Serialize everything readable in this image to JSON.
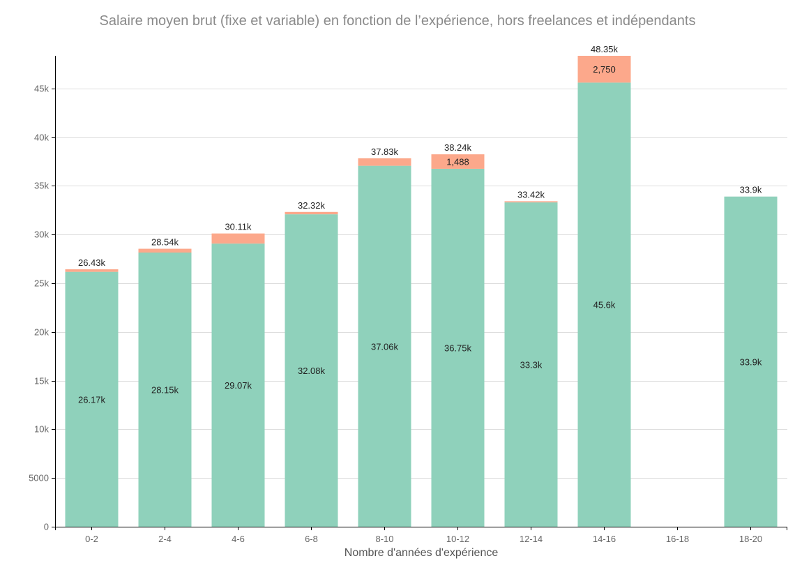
{
  "chart_data": {
    "type": "bar",
    "stacked": true,
    "title": "Salaire moyen brut (fixe et variable) en fonction de l’expérience, hors freelances et indépendants",
    "xlabel": "Nombre d'années d'expérience",
    "ylabel": "",
    "ylim": [
      0,
      48350
    ],
    "yticks": [
      0,
      5000,
      10000,
      15000,
      20000,
      25000,
      30000,
      35000,
      40000,
      45000
    ],
    "ytick_labels": [
      "0",
      "5000",
      "10k",
      "15k",
      "20k",
      "25k",
      "30k",
      "35k",
      "40k",
      "45k"
    ],
    "grid": true,
    "legend": "none",
    "categories": [
      "0-2",
      "2-4",
      "4-6",
      "6-8",
      "8-10",
      "10-12",
      "12-14",
      "14-16",
      "16-18",
      "18-20"
    ],
    "series": [
      {
        "color": "#8fd1bb",
        "values": [
          26170,
          28150,
          29070,
          32080,
          37060,
          36750,
          33300,
          45600,
          null,
          33900
        ],
        "labels": [
          "26.17k",
          "28.15k",
          "29.07k",
          "32.08k",
          "37.06k",
          "36.75k",
          "33.3k",
          "45.6k",
          "",
          "33.9k"
        ]
      },
      {
        "color": "#fca88b",
        "values": [
          260,
          390,
          1040,
          240,
          770,
          1488,
          120,
          2750,
          null,
          0
        ],
        "labels": [
          "",
          "",
          "",
          "",
          "",
          "1,488",
          "",
          "2,750",
          "",
          ""
        ]
      }
    ],
    "totals": [
      26430,
      28540,
      30110,
      32320,
      37830,
      38240,
      33420,
      48350,
      null,
      33900
    ],
    "total_labels": [
      "26.43k",
      "28.54k",
      "30.11k",
      "32.32k",
      "37.83k",
      "38.24k",
      "33.42k",
      "48.35k",
      "",
      "33.9k"
    ]
  }
}
